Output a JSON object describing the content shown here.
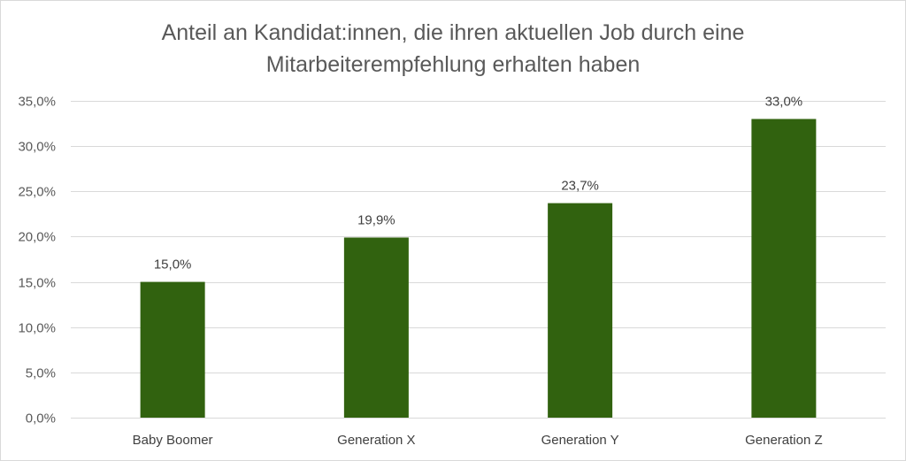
{
  "chart_data": {
    "type": "bar",
    "title": "Anteil an Kandidat:innen, die ihren aktuellen Job durch eine Mitarbeiterempfehlung erhalten haben",
    "title_lines": [
      "Anteil an Kandidat:innen, die ihren aktuellen Job durch eine",
      "Mitarbeiterempfehlung erhalten haben"
    ],
    "categories": [
      "Baby Boomer",
      "Generation X",
      "Generation Y",
      "Generation Z"
    ],
    "values": [
      15.0,
      19.9,
      23.7,
      33.0
    ],
    "data_labels": [
      "15,0%",
      "19,9%",
      "23,7%",
      "33,0%"
    ],
    "y_ticks": [
      0,
      5,
      10,
      15,
      20,
      25,
      30,
      35
    ],
    "y_tick_labels": [
      "0,0%",
      "5,0%",
      "10,0%",
      "15,0%",
      "20,0%",
      "25,0%",
      "30,0%",
      "35,0%"
    ],
    "ylim": [
      0,
      35
    ],
    "xlabel": "",
    "ylabel": "",
    "grid": true,
    "legend": "none",
    "colors": {
      "bar": "#31620f",
      "grid": "#d9d9d9",
      "text": "#595959"
    }
  }
}
